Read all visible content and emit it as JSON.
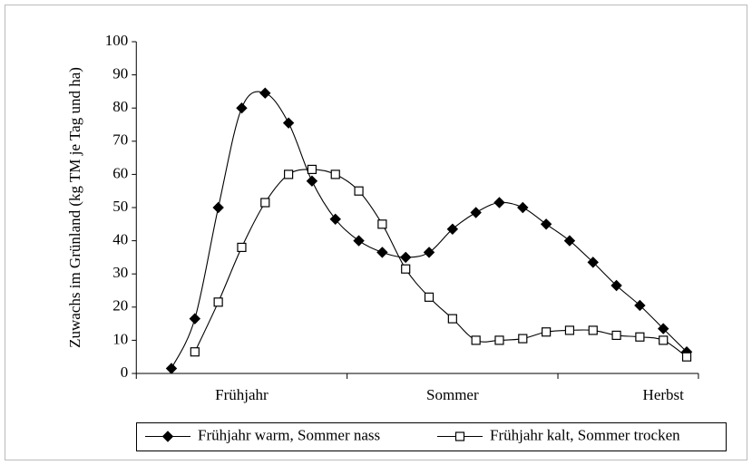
{
  "chart_data": {
    "type": "line",
    "y_label": "Zuwachs im Grünland (kg TM je Tag und ha)",
    "categories": [
      null,
      null,
      null,
      "Frühjahr",
      null,
      null,
      null,
      null,
      null,
      null,
      null,
      null,
      "Sommer",
      null,
      null,
      null,
      null,
      null,
      null,
      null,
      null,
      "Herbst",
      null
    ],
    "series": [
      {
        "name": "Frühjahr warm, Sommer nass",
        "color": "#000000",
        "marker": "diamond",
        "values": [
          1.5,
          16.5,
          50,
          80,
          84.5,
          75.5,
          58,
          46.5,
          40,
          36.5,
          35,
          36.5,
          43.5,
          48.5,
          51.5,
          50,
          45,
          40,
          33.5,
          26.5,
          20.5,
          13.5,
          6.5
        ]
      },
      {
        "name": "Frühjahr kalt, Sommer trocken",
        "color": "#000000",
        "marker": "square",
        "values": [
          null,
          6.5,
          21.5,
          38,
          51.5,
          60,
          61.5,
          60,
          55,
          45,
          31.5,
          23,
          16.5,
          10,
          10,
          10.5,
          12.5,
          13,
          13,
          11.5,
          11,
          10,
          5
        ]
      }
    ],
    "ylim": [
      0,
      100
    ],
    "yticks": [
      0,
      10,
      20,
      30,
      40,
      50,
      60,
      70,
      80,
      90,
      100
    ],
    "grid": false,
    "legend": "bottom"
  }
}
